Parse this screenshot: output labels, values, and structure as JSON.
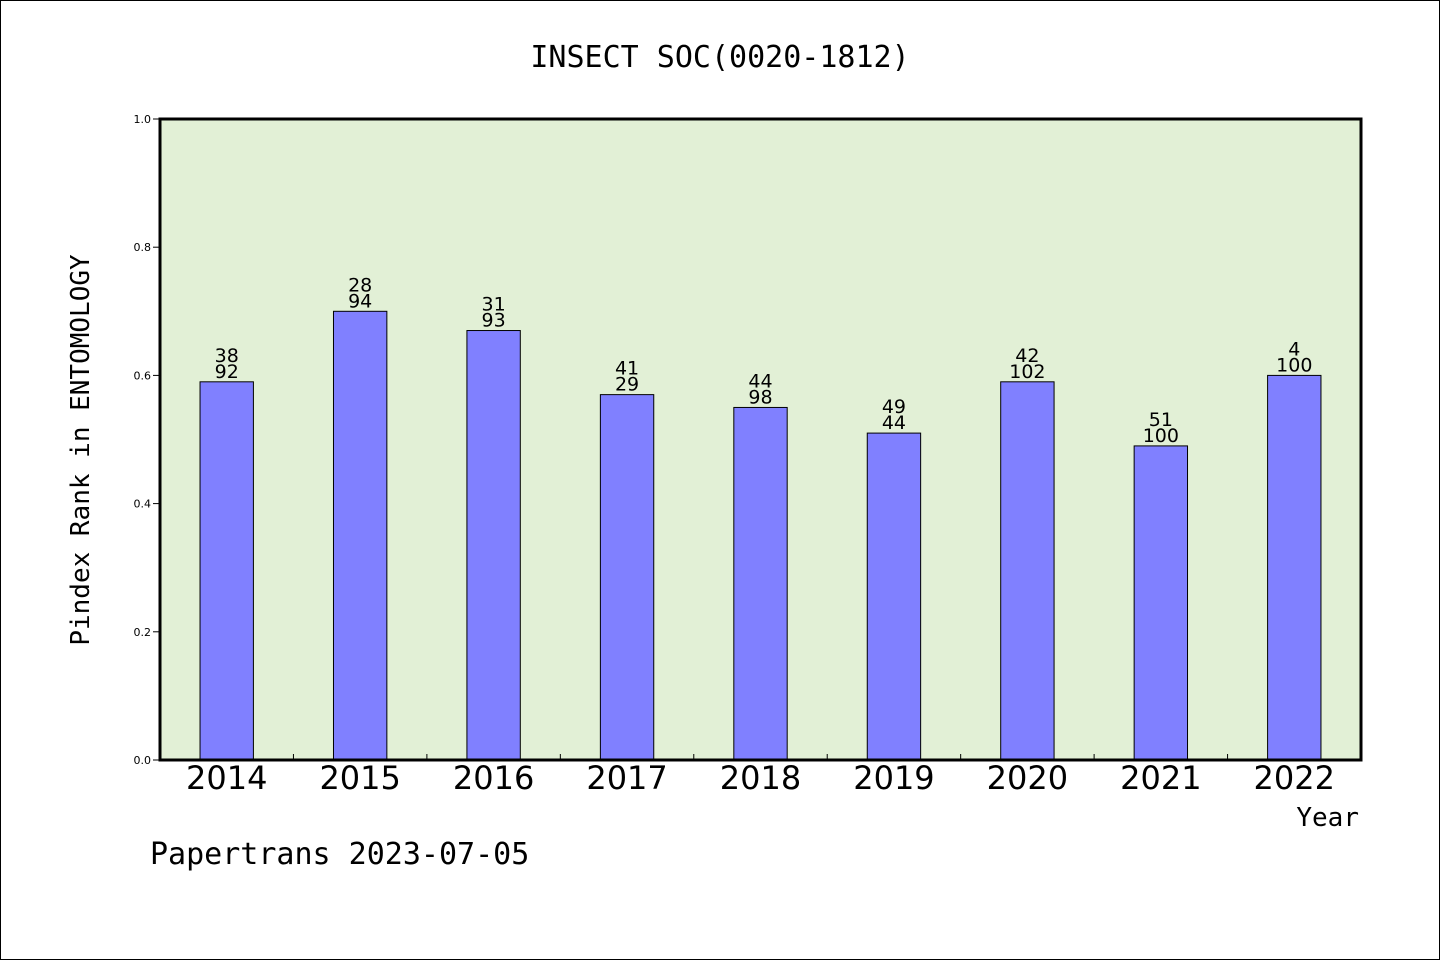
{
  "chart_data": {
    "type": "bar",
    "title": "INSECT SOC(0020-1812)",
    "xlabel": "Year",
    "ylabel": "Pindex Rank in ENTOMOLOGY",
    "footer": "Papertrans 2023-07-05",
    "ylim": [
      0,
      1.0
    ],
    "yticks": [
      "0.0",
      "0.2",
      "0.4",
      "0.6",
      "0.8",
      "1.0"
    ],
    "categories": [
      "2014",
      "2015",
      "2016",
      "2017",
      "2018",
      "2019",
      "2020",
      "2021",
      "2022"
    ],
    "values": [
      0.59,
      0.7,
      0.67,
      0.57,
      0.55,
      0.51,
      0.59,
      0.49,
      0.6
    ],
    "label_top": [
      "38",
      "28",
      "31",
      "41",
      "44",
      "49",
      "42",
      "51",
      "4"
    ],
    "label_bottom": [
      "92",
      "94",
      "93",
      "29",
      "98",
      "44",
      "102",
      "100",
      "100"
    ],
    "grid": false,
    "legend": "none",
    "colors": {
      "bar": "#8080ff",
      "plot_background": "#e2f0d6",
      "axis": "#000000"
    }
  }
}
